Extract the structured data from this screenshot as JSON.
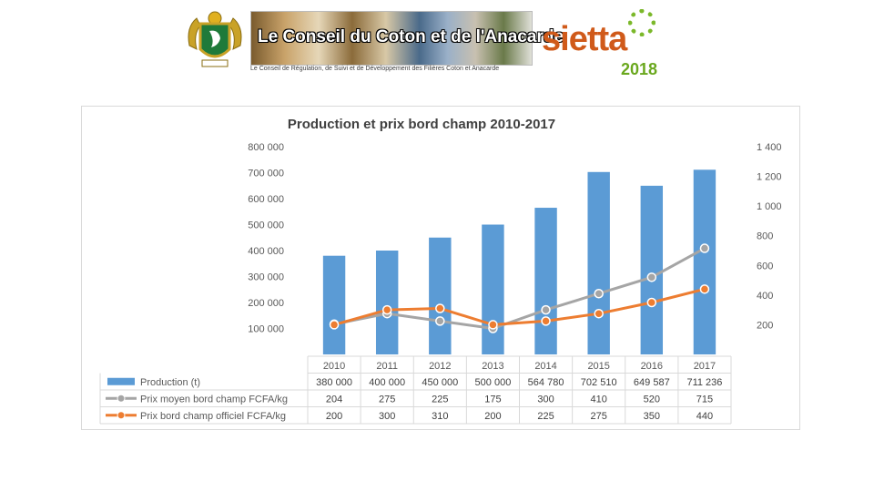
{
  "header": {
    "banner_title": "Le Conseil du Coton et de l'Anacarde",
    "banner_subtitle": "Le Conseil de Régulation, de Suivi et de Développement des Filières Coton et Anacarde",
    "event_name": "sietta",
    "event_year": "2018",
    "emblem_icon": "coat-of-arms-icon",
    "gear_icon": "gear-icon"
  },
  "colors": {
    "bar": "#5b9bd5",
    "grey_line": "#a5a5a5",
    "orange_line": "#ed7d31"
  },
  "chart_data": {
    "type": "bar",
    "title": "Production et prix bord champ 2010-2017",
    "categories": [
      "2010",
      "2011",
      "2012",
      "2013",
      "2014",
      "2015",
      "2016",
      "2017"
    ],
    "series": [
      {
        "name": "Production (t)",
        "type": "bar",
        "axis": "left",
        "values": [
          380000,
          400000,
          450000,
          500000,
          564780,
          702510,
          649587,
          711236
        ],
        "labels": [
          "380 000",
          "400 000",
          "450 000",
          "500 000",
          "564 780",
          "702 510",
          "649 587",
          "711 236"
        ]
      },
      {
        "name": "Prix moyen bord champ FCFA/kg",
        "type": "line",
        "axis": "right",
        "values": [
          204,
          275,
          225,
          175,
          300,
          410,
          520,
          715
        ],
        "labels": [
          "204",
          "275",
          "225",
          "175",
          "300",
          "410",
          "520",
          "715"
        ]
      },
      {
        "name": "Prix bord champ officiel FCFA/kg",
        "type": "line",
        "axis": "right",
        "values": [
          200,
          300,
          310,
          200,
          225,
          275,
          350,
          440
        ],
        "labels": [
          "200",
          "300",
          "310",
          "200",
          "225",
          "275",
          "350",
          "440"
        ]
      }
    ],
    "y_left": {
      "ticks": [
        "100 000",
        "200 000",
        "300 000",
        "400 000",
        "500 000",
        "600 000",
        "700 000",
        "800 000"
      ],
      "range": [
        0,
        800000
      ]
    },
    "y_right": {
      "ticks": [
        "200",
        "400",
        "600",
        "800",
        "1 000",
        "1 200",
        "1 400"
      ],
      "range": [
        0,
        1400
      ]
    },
    "data_table": true,
    "grid": false
  }
}
